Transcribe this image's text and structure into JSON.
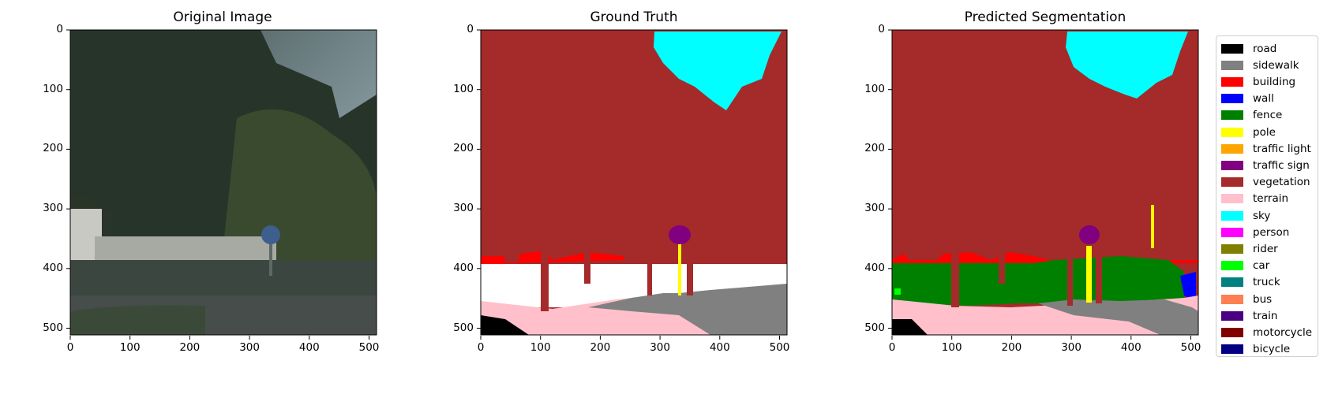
{
  "panels": [
    {
      "title": "Original Image"
    },
    {
      "title": "Ground Truth"
    },
    {
      "title": "Predicted Segmentation"
    }
  ],
  "axes": {
    "x_ticks": [
      "0",
      "100",
      "200",
      "300",
      "400",
      "500"
    ],
    "y_ticks": [
      "0",
      "100",
      "200",
      "300",
      "400",
      "500"
    ]
  },
  "legend": [
    {
      "label": "road",
      "color": "#000000"
    },
    {
      "label": "sidewalk",
      "color": "#808080"
    },
    {
      "label": "building",
      "color": "#ff0000"
    },
    {
      "label": "wall",
      "color": "#0000ff"
    },
    {
      "label": "fence",
      "color": "#008000"
    },
    {
      "label": "pole",
      "color": "#ffff00"
    },
    {
      "label": "traffic light",
      "color": "#ffa500"
    },
    {
      "label": "traffic sign",
      "color": "#800080"
    },
    {
      "label": "vegetation",
      "color": "#a52a2a"
    },
    {
      "label": "terrain",
      "color": "#ffc0cb"
    },
    {
      "label": "sky",
      "color": "#00ffff"
    },
    {
      "label": "person",
      "color": "#ff00ff"
    },
    {
      "label": "rider",
      "color": "#808000"
    },
    {
      "label": "car",
      "color": "#00ff00"
    },
    {
      "label": "truck",
      "color": "#008080"
    },
    {
      "label": "bus",
      "color": "#ff7f50"
    },
    {
      "label": "train",
      "color": "#4b0082"
    },
    {
      "label": "motorcycle",
      "color": "#800000"
    },
    {
      "label": "bicycle",
      "color": "#000080"
    }
  ]
}
